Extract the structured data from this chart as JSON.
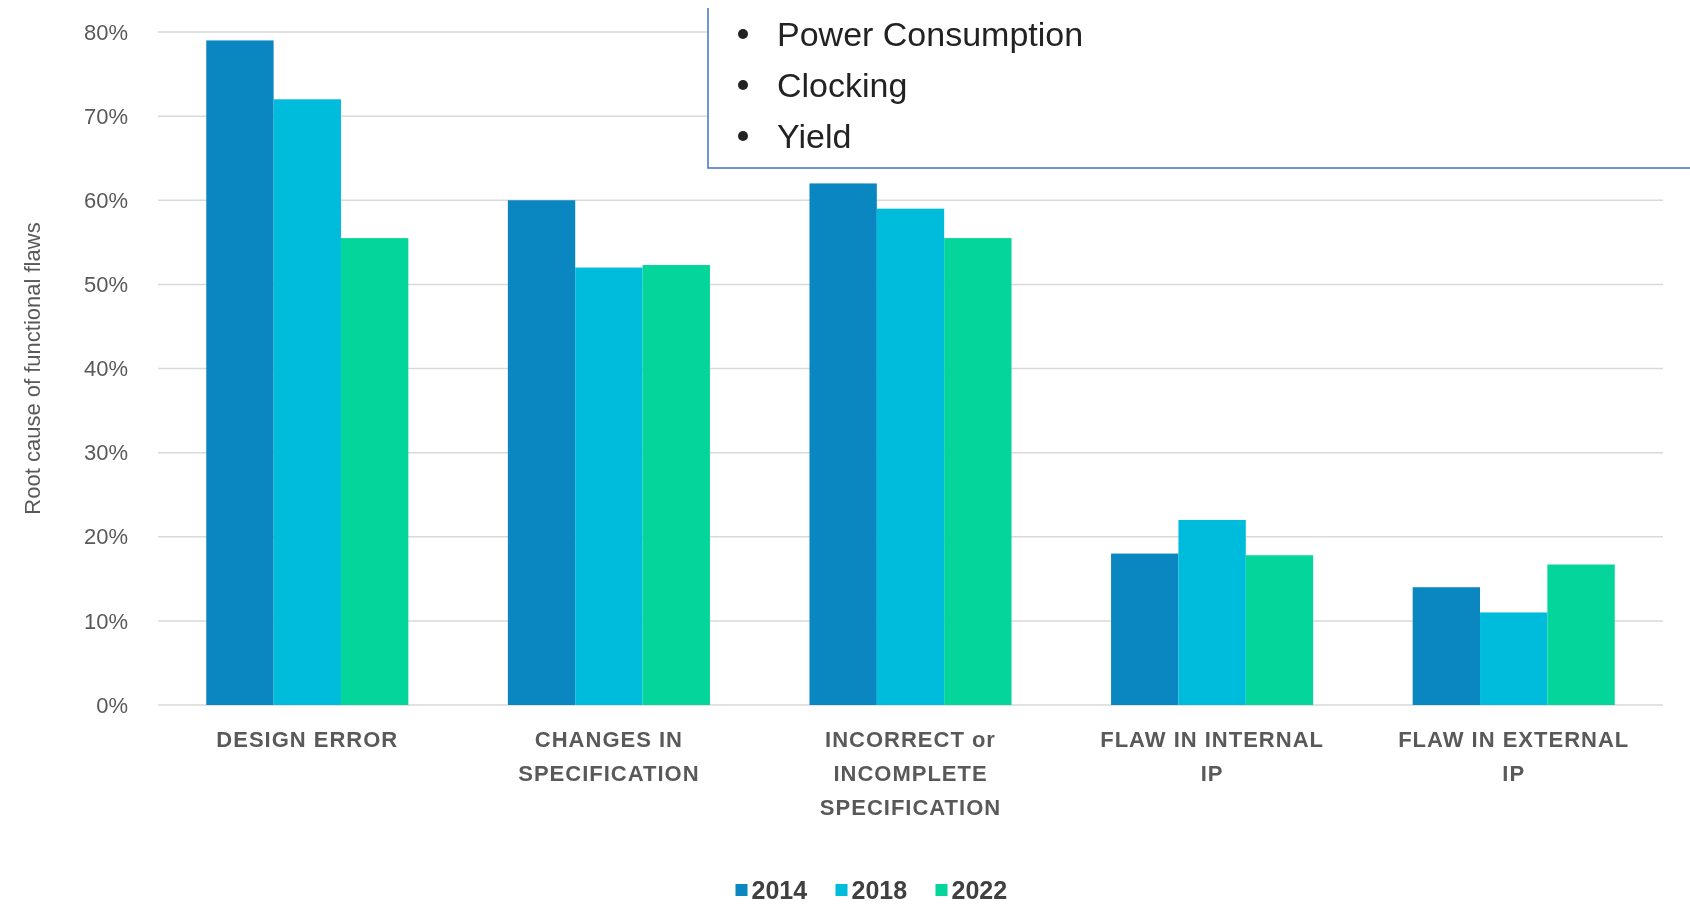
{
  "chart_data": {
    "type": "bar",
    "ylabel": "Root cause of functional flaws",
    "categories": [
      "DESIGN ERROR",
      "CHANGES IN SPECIFICATION",
      "INCORRECT or INCOMPLETE SPECIFICATION",
      "FLAW IN INTERNAL IP",
      "FLAW IN EXTERNAL IP"
    ],
    "series": [
      {
        "name": "2014",
        "color": "#0a86c0",
        "values": [
          79,
          60,
          62,
          18,
          14
        ]
      },
      {
        "name": "2018",
        "color": "#00bcdc",
        "values": [
          72,
          52,
          59,
          22,
          11
        ]
      },
      {
        "name": "2022",
        "color": "#04d59a",
        "values": [
          55.5,
          52.3,
          55.5,
          17.8,
          16.7
        ]
      }
    ],
    "ylim": [
      0,
      80
    ],
    "yticks": [
      {
        "value": 0,
        "label": "0%"
      },
      {
        "value": 10,
        "label": "10%"
      },
      {
        "value": 20,
        "label": "20%"
      },
      {
        "value": 30,
        "label": "30%"
      },
      {
        "value": 40,
        "label": "40%"
      },
      {
        "value": 50,
        "label": "50%"
      },
      {
        "value": 60,
        "label": "60%"
      },
      {
        "value": 70,
        "label": "70%"
      },
      {
        "value": 80,
        "label": "80%"
      }
    ],
    "grid": "y",
    "legend": "bottom",
    "annotations": [
      "Power Consumption",
      "Clocking",
      "Yield"
    ]
  }
}
